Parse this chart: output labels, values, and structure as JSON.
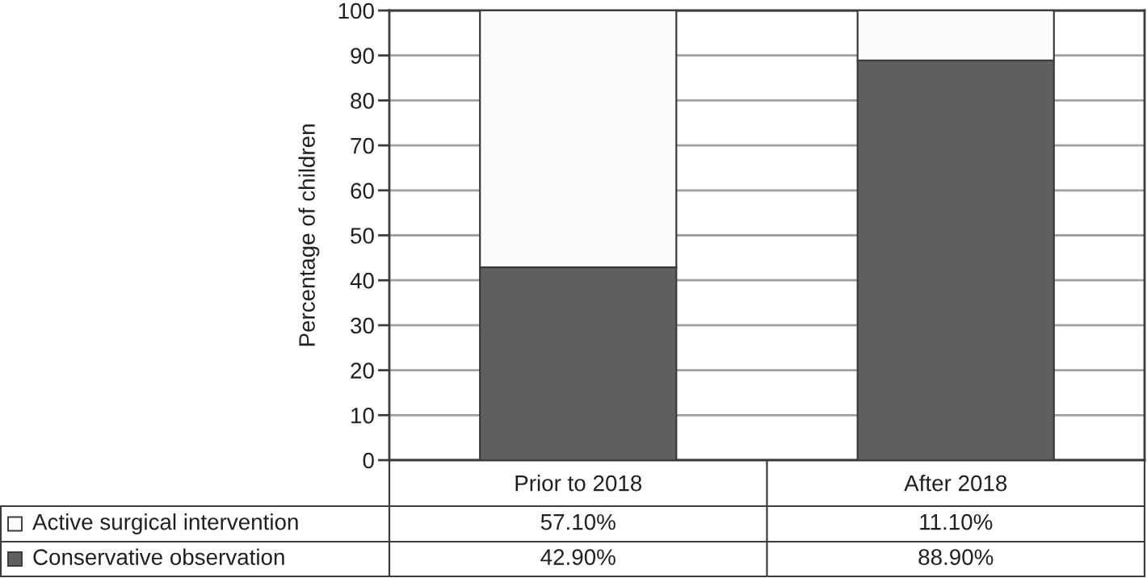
{
  "chart_data": {
    "type": "bar",
    "ylabel": "Percentage of children",
    "categories": [
      "Prior to 2018",
      "After 2018"
    ],
    "stacked": true,
    "series": [
      {
        "name": "Conservative observation",
        "color": "#5e5f61",
        "values": [
          42.9,
          88.9
        ],
        "value_labels": [
          "42.90%",
          "88.90%"
        ]
      },
      {
        "name": "Active surgical intervention",
        "color": "#fcfcfc",
        "values": [
          57.1,
          11.1
        ],
        "value_labels": [
          "57.10%",
          "11.10%"
        ]
      }
    ],
    "ylim": [
      0,
      100
    ],
    "yticks": [
      0,
      10,
      20,
      30,
      40,
      50,
      60,
      70,
      80,
      90,
      100
    ],
    "grid": "y",
    "legend": "bottom left"
  }
}
